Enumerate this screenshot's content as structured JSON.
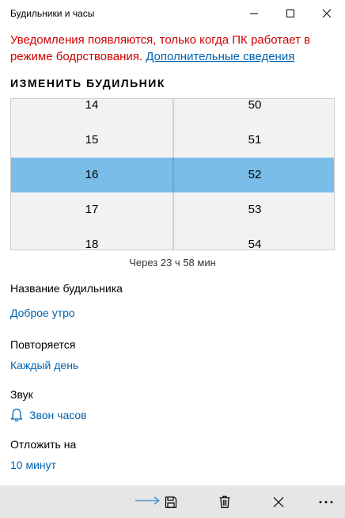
{
  "window": {
    "title": "Будильники и часы",
    "icons": {
      "minimize": "minimize-icon",
      "maximize": "maximize-icon",
      "close": "close-icon"
    }
  },
  "notice": {
    "text": "Уведомления появляются, только когда ПК работает в режиме бодрствования.",
    "link": "Дополнительные сведения",
    "color": "#d00000"
  },
  "edit": {
    "heading": "ИЗМЕНИТЬ БУДИЛЬНИК",
    "picker": {
      "hours": [
        "14",
        "15",
        "16",
        "17",
        "18"
      ],
      "minutes": [
        "50",
        "51",
        "52",
        "53",
        "54"
      ],
      "selected_hour": "16",
      "selected_minute": "52",
      "selection_color": "#79bde8"
    },
    "remaining": "Через 23 ч 58 мин",
    "name": {
      "label": "Название будильника",
      "value": "Доброе утро"
    },
    "repeat": {
      "label": "Повторяется",
      "value": "Каждый день"
    },
    "sound": {
      "label": "Звук",
      "value": "Звон часов",
      "icon": "bell-icon"
    },
    "snooze": {
      "label": "Отложить на",
      "value": "10 минут"
    }
  },
  "commandbar": {
    "buttons": [
      "save-icon",
      "delete-icon",
      "close-icon",
      "more-icon"
    ],
    "accent": "#0063b1"
  }
}
